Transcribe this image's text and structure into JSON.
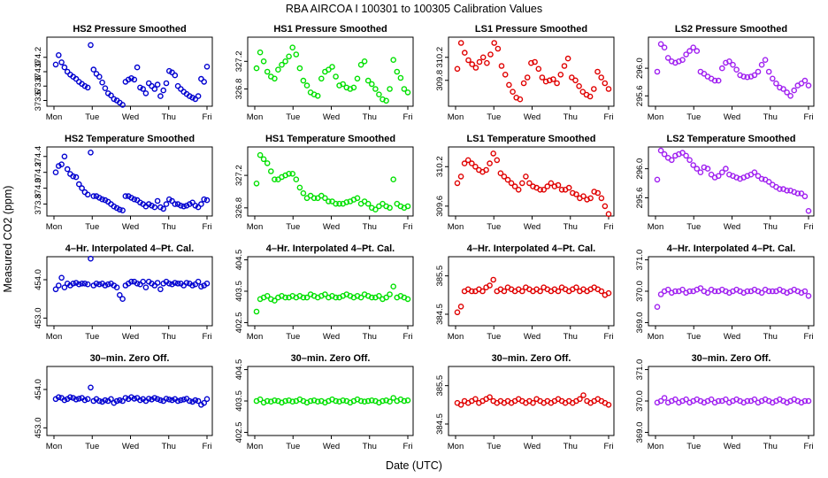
{
  "figure": {
    "title": "RBA   AIRCOA I   100301 to 100305   Calibration Values",
    "xlabel": "Date (UTC)",
    "ylabel": "Measured CO2 (ppm)",
    "day_labels": [
      "Mon",
      "Tue",
      "Wed",
      "Thu",
      "Fri"
    ]
  },
  "colors": {
    "HS2": "#0000d0",
    "HS1": "#00e000",
    "LS1": "#e00000",
    "LS2": "#a020f0"
  },
  "chart_data": [
    {
      "type": "scatter",
      "title": "HS2 Pressure Smoothed",
      "series": "HS2",
      "ylim": [
        373.52,
        374.48
      ],
      "yticks": [
        "373.6",
        "373.8",
        "374.0",
        "374.2"
      ],
      "y_sample": [
        374.1,
        374.23,
        374.13,
        374.06,
        374.0,
        373.96,
        373.93,
        373.9,
        373.86,
        373.83,
        373.8,
        373.78,
        374.37,
        374.03,
        373.97,
        373.93,
        373.85,
        373.77,
        373.7,
        373.67,
        373.62,
        373.6,
        373.57,
        373.54,
        373.86,
        373.89,
        373.91,
        373.89,
        374.06,
        373.78,
        373.76,
        373.7,
        373.84,
        373.8,
        373.76,
        373.82,
        373.66,
        373.74,
        373.84,
        374.01,
        373.99,
        373.95,
        373.8,
        373.76,
        373.72,
        373.69,
        373.66,
        373.64,
        373.62,
        373.66,
        373.9,
        373.86,
        374.07
      ]
    },
    {
      "type": "scatter",
      "title": "HS1 Pressure Smoothed",
      "series": "HS1",
      "ylim": [
        326.55,
        327.55
      ],
      "yticks": [
        "326.8",
        "327.2"
      ],
      "y_sample": [
        327.1,
        327.33,
        327.2,
        327.05,
        326.98,
        326.95,
        327.08,
        327.15,
        327.2,
        327.27,
        327.4,
        327.3,
        327.1,
        326.92,
        326.85,
        326.75,
        326.72,
        326.7,
        326.95,
        327.05,
        327.08,
        327.12,
        326.98,
        326.85,
        326.87,
        326.82,
        326.8,
        326.82,
        326.95,
        327.15,
        327.2,
        326.92,
        326.87,
        326.8,
        326.72,
        326.65,
        326.63,
        326.8,
        327.22,
        327.05,
        326.96,
        326.8,
        326.75
      ]
    },
    {
      "type": "scatter",
      "title": "LS1 Pressure Smoothed",
      "series": "LS1",
      "ylim": [
        309.35,
        310.55
      ],
      "yticks": [
        "309.8",
        "310.2"
      ],
      "y_sample": [
        310.0,
        310.45,
        310.28,
        310.15,
        310.08,
        310.02,
        310.12,
        310.2,
        310.1,
        310.25,
        310.45,
        310.35,
        310.05,
        309.9,
        309.72,
        309.6,
        309.5,
        309.47,
        309.75,
        309.85,
        310.1,
        310.12,
        310.0,
        309.85,
        309.78,
        309.8,
        309.82,
        309.75,
        309.9,
        310.05,
        310.18,
        309.85,
        309.8,
        309.7,
        309.6,
        309.55,
        309.52,
        309.65,
        309.95,
        309.85,
        309.75,
        309.65
      ]
    },
    {
      "type": "scatter",
      "title": "LS2 Pressure Smoothed",
      "series": "LS2",
      "ylim": [
        295.45,
        296.45
      ],
      "yticks": [
        "295.6",
        "296.0"
      ],
      "y_sample": [
        295.95,
        296.35,
        296.3,
        296.15,
        296.1,
        296.08,
        296.1,
        296.12,
        296.2,
        296.25,
        296.3,
        296.25,
        295.95,
        295.92,
        295.88,
        295.85,
        295.82,
        295.82,
        296.0,
        296.08,
        296.1,
        296.05,
        295.98,
        295.9,
        295.88,
        295.87,
        295.88,
        295.9,
        295.95,
        296.05,
        296.12,
        295.95,
        295.85,
        295.78,
        295.72,
        295.7,
        295.65,
        295.6,
        295.68,
        295.75,
        295.78,
        295.82,
        295.75
      ]
    },
    {
      "type": "scatter",
      "title": "HS2 Temperature Smoothed",
      "series": "HS2",
      "ylim": [
        373.65,
        374.52
      ],
      "yticks": [
        "373.8",
        "374.0",
        "374.2",
        "374.4"
      ],
      "y_sample": [
        374.2,
        374.28,
        374.3,
        374.4,
        374.24,
        374.18,
        374.15,
        374.14,
        374.05,
        374.0,
        373.95,
        373.92,
        374.45,
        373.9,
        373.9,
        373.88,
        373.86,
        373.85,
        373.83,
        373.8,
        373.77,
        373.75,
        373.73,
        373.72,
        373.9,
        373.9,
        373.88,
        373.86,
        373.85,
        373.82,
        373.8,
        373.77,
        373.8,
        373.78,
        373.76,
        373.84,
        373.76,
        373.74,
        373.8,
        373.86,
        373.84,
        373.8,
        373.8,
        373.78,
        373.77,
        373.78,
        373.8,
        373.82,
        373.78,
        373.76,
        373.8,
        373.86,
        373.85
      ]
    },
    {
      "type": "scatter",
      "title": "HS1 Temperature Smoothed",
      "series": "HS1",
      "ylim": [
        326.7,
        327.55
      ],
      "yticks": [
        "326.8",
        "327.2"
      ],
      "y_sample": [
        327.1,
        327.45,
        327.4,
        327.35,
        327.25,
        327.15,
        327.15,
        327.18,
        327.2,
        327.22,
        327.22,
        327.15,
        327.05,
        326.98,
        326.92,
        326.95,
        326.92,
        326.92,
        326.95,
        326.92,
        326.88,
        326.88,
        326.85,
        326.85,
        326.85,
        326.87,
        326.88,
        326.9,
        326.92,
        326.85,
        326.88,
        326.85,
        326.8,
        326.78,
        326.82,
        326.85,
        326.82,
        326.8,
        327.15,
        326.85,
        326.82,
        326.8,
        326.82
      ]
    },
    {
      "type": "scatter",
      "title": "LS1 Temperature Smoothed",
      "series": "LS1",
      "ylim": [
        309.45,
        310.5
      ],
      "yticks": [
        "309.6",
        "310.2"
      ],
      "y_sample": [
        309.95,
        310.05,
        310.25,
        310.3,
        310.25,
        310.2,
        310.15,
        310.12,
        310.15,
        310.25,
        310.4,
        310.3,
        310.1,
        310.05,
        310.0,
        309.95,
        309.9,
        309.85,
        309.95,
        310.05,
        309.95,
        309.9,
        309.88,
        309.85,
        309.85,
        309.9,
        309.95,
        309.9,
        309.92,
        309.85,
        309.85,
        309.88,
        309.8,
        309.78,
        309.72,
        309.75,
        309.7,
        309.72,
        309.82,
        309.8,
        309.72,
        309.6,
        309.48
      ]
    },
    {
      "type": "scatter",
      "title": "LS2 Temperature Smoothed",
      "series": "LS2",
      "ylim": [
        295.35,
        296.3
      ],
      "yticks": [
        "295.6",
        "296.0"
      ],
      "y_sample": [
        295.85,
        296.25,
        296.2,
        296.15,
        296.12,
        296.18,
        296.2,
        296.22,
        296.18,
        296.12,
        296.05,
        296.0,
        295.95,
        296.02,
        296.0,
        295.92,
        295.88,
        295.9,
        295.95,
        296.0,
        295.92,
        295.9,
        295.88,
        295.86,
        295.88,
        295.9,
        295.92,
        295.95,
        295.9,
        295.86,
        295.85,
        295.82,
        295.78,
        295.75,
        295.72,
        295.72,
        295.7,
        295.7,
        295.68,
        295.66,
        295.66,
        295.62,
        295.42
      ]
    },
    {
      "type": "scatter",
      "title": "4–Hr. Interpolated 4–Pt. Cal.",
      "series": "HS2",
      "ylim": [
        452.8,
        454.6
      ],
      "yticks": [
        "453.0",
        "454.0"
      ],
      "y_sample": [
        453.75,
        453.85,
        454.05,
        453.8,
        453.9,
        453.85,
        453.9,
        453.92,
        453.88,
        453.9,
        453.9,
        453.88,
        454.55,
        453.85,
        453.9,
        453.88,
        453.9,
        453.85,
        453.88,
        453.9,
        453.85,
        453.8,
        453.6,
        453.5,
        453.85,
        453.9,
        453.95,
        453.95,
        453.9,
        453.88,
        453.95,
        453.8,
        453.95,
        453.9,
        453.85,
        453.92,
        453.75,
        453.9,
        453.95,
        453.9,
        453.88,
        453.92,
        453.9,
        453.9,
        453.85,
        453.92,
        453.9,
        453.85,
        453.88,
        453.95,
        453.82,
        453.85,
        453.9
      ]
    },
    {
      "type": "scatter",
      "title": "4–Hr. Interpolated 4–Pt. Cal.",
      "series": "HS1",
      "ylim": [
        402.4,
        404.6
      ],
      "yticks": [
        "402.5",
        "403.5",
        "404.5"
      ],
      "y_sample": [
        402.85,
        403.25,
        403.3,
        403.35,
        403.25,
        403.2,
        403.3,
        403.35,
        403.3,
        403.3,
        403.35,
        403.3,
        403.35,
        403.3,
        403.3,
        403.4,
        403.35,
        403.3,
        403.35,
        403.4,
        403.3,
        403.35,
        403.3,
        403.3,
        403.35,
        403.4,
        403.35,
        403.3,
        403.35,
        403.3,
        403.4,
        403.35,
        403.3,
        403.3,
        403.35,
        403.25,
        403.3,
        403.4,
        403.65,
        403.3,
        403.35,
        403.3,
        403.25
      ]
    },
    {
      "type": "scatter",
      "title": "4–Hr. Interpolated 4–Pt. Cal.",
      "series": "LS1",
      "ylim": [
        384.2,
        386.0
      ],
      "yticks": [
        "384.5",
        "385.5"
      ],
      "y_sample": [
        384.55,
        384.7,
        385.1,
        385.15,
        385.1,
        385.1,
        385.15,
        385.1,
        385.2,
        385.25,
        385.4,
        385.1,
        385.15,
        385.1,
        385.2,
        385.15,
        385.1,
        385.15,
        385.1,
        385.2,
        385.15,
        385.1,
        385.15,
        385.1,
        385.2,
        385.15,
        385.1,
        385.15,
        385.1,
        385.2,
        385.15,
        385.1,
        385.15,
        385.2,
        385.1,
        385.15,
        385.1,
        385.15,
        385.2,
        385.15,
        385.1,
        385.0,
        385.05
      ]
    },
    {
      "type": "scatter",
      "title": "4–Hr. Interpolated 4–Pt. Cal.",
      "series": "LS2",
      "ylim": [
        368.9,
        371.1
      ],
      "yticks": [
        "369.0",
        "370.0",
        "371.0"
      ],
      "y_sample": [
        369.5,
        369.9,
        370.0,
        370.05,
        369.95,
        370.0,
        370.0,
        370.05,
        369.95,
        370.0,
        370.0,
        370.05,
        370.1,
        370.0,
        369.95,
        370.05,
        370.0,
        370.0,
        370.05,
        370.0,
        369.95,
        370.0,
        370.05,
        370.0,
        369.95,
        370.0,
        370.0,
        370.05,
        370.0,
        369.95,
        370.05,
        370.0,
        370.0,
        370.0,
        370.05,
        370.0,
        369.95,
        370.0,
        370.05,
        370.0,
        369.95,
        370.0,
        369.85
      ]
    },
    {
      "type": "scatter",
      "title": "30–min. Zero Off.",
      "series": "HS2",
      "ylim": [
        452.8,
        454.6
      ],
      "yticks": [
        "453.0",
        "454.0"
      ],
      "y_sample": [
        453.75,
        453.8,
        453.78,
        453.72,
        453.75,
        453.8,
        453.78,
        453.74,
        453.76,
        453.78,
        453.72,
        453.75,
        454.05,
        453.7,
        453.75,
        453.7,
        453.68,
        453.72,
        453.7,
        453.75,
        453.65,
        453.7,
        453.72,
        453.7,
        453.78,
        453.75,
        453.8,
        453.76,
        453.78,
        453.72,
        453.75,
        453.7,
        453.76,
        453.74,
        453.78,
        453.75,
        453.72,
        453.7,
        453.76,
        453.74,
        453.72,
        453.75,
        453.7,
        453.72,
        453.74,
        453.76,
        453.7,
        453.68,
        453.72,
        453.7,
        453.6,
        453.65,
        453.75
      ]
    },
    {
      "type": "scatter",
      "title": "30–min. Zero Off.",
      "series": "HS1",
      "ylim": [
        402.4,
        404.6
      ],
      "yticks": [
        "402.5",
        "403.5",
        "404.5"
      ],
      "y_sample": [
        403.5,
        403.55,
        403.45,
        403.5,
        403.48,
        403.52,
        403.5,
        403.45,
        403.5,
        403.52,
        403.48,
        403.5,
        403.55,
        403.5,
        403.45,
        403.5,
        403.52,
        403.48,
        403.5,
        403.45,
        403.5,
        403.55,
        403.5,
        403.48,
        403.52,
        403.5,
        403.45,
        403.5,
        403.55,
        403.5,
        403.48,
        403.5,
        403.52,
        403.5,
        403.45,
        403.5,
        403.52,
        403.48,
        403.6,
        403.5,
        403.55,
        403.5,
        403.52
      ]
    },
    {
      "type": "scatter",
      "title": "30–min. Zero Off.",
      "series": "LS1",
      "ylim": [
        384.2,
        386.0
      ],
      "yticks": [
        "384.5",
        "385.5"
      ],
      "y_sample": [
        385.05,
        385.0,
        385.1,
        385.05,
        385.1,
        385.15,
        385.05,
        385.1,
        385.15,
        385.2,
        385.1,
        385.05,
        385.1,
        385.05,
        385.1,
        385.05,
        385.1,
        385.15,
        385.1,
        385.05,
        385.1,
        385.05,
        385.15,
        385.1,
        385.05,
        385.1,
        385.05,
        385.1,
        385.15,
        385.1,
        385.05,
        385.1,
        385.05,
        385.1,
        385.15,
        385.25,
        385.1,
        385.05,
        385.1,
        385.15,
        385.1,
        385.05,
        385.0
      ]
    },
    {
      "type": "scatter",
      "title": "30–min. Zero Off.",
      "series": "LS2",
      "ylim": [
        368.9,
        371.1
      ],
      "yticks": [
        "369.0",
        "370.0",
        "371.0"
      ],
      "y_sample": [
        369.95,
        370.0,
        370.1,
        369.95,
        370.0,
        370.05,
        369.95,
        370.0,
        370.05,
        369.95,
        370.0,
        370.05,
        370.0,
        369.95,
        370.0,
        370.05,
        369.95,
        370.0,
        370.0,
        370.05,
        369.95,
        370.0,
        370.05,
        370.0,
        369.95,
        370.0,
        370.0,
        370.05,
        369.95,
        370.0,
        370.05,
        370.0,
        369.95,
        370.0,
        370.05,
        370.0,
        369.95,
        370.0,
        370.05,
        370.0,
        369.95,
        370.0,
        370.0
      ]
    }
  ]
}
